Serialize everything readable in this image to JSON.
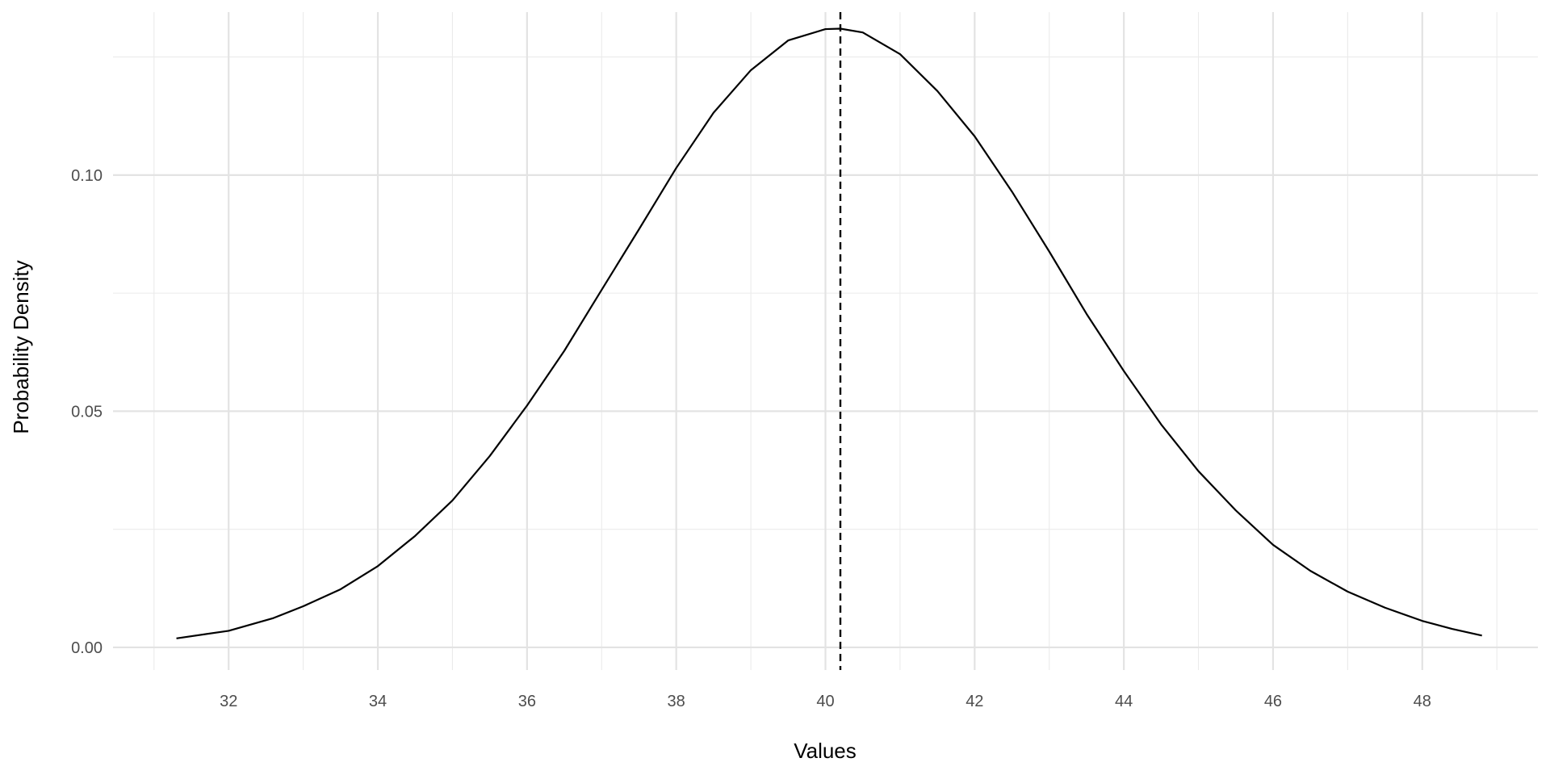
{
  "chart_data": {
    "type": "line",
    "title": "",
    "xlabel": "Values",
    "ylabel": "Probability Density",
    "xlim": [
      30.45,
      49.55
    ],
    "ylim": [
      -0.0048,
      0.1345
    ],
    "x_ticks": [
      32,
      34,
      36,
      38,
      40,
      42,
      44,
      46,
      48
    ],
    "x_tick_labels": [
      "32",
      "34",
      "36",
      "38",
      "40",
      "42",
      "44",
      "46",
      "48"
    ],
    "y_ticks": [
      0.0,
      0.05,
      0.1
    ],
    "y_tick_labels": [
      "0.00",
      "0.05",
      "0.10"
    ],
    "x_minor_ticks": [
      31,
      33,
      35,
      37,
      39,
      41,
      43,
      45,
      47,
      49
    ],
    "y_minor_ticks": [
      0.025,
      0.075,
      0.125
    ],
    "grid": true,
    "legend": "none",
    "series": [
      {
        "x": [
          31.3,
          32.0,
          32.6,
          33.0,
          33.5,
          34.0,
          34.5,
          35.0,
          35.5,
          36.0,
          36.5,
          37.0,
          37.5,
          38.0,
          38.5,
          39.0,
          39.5,
          40.0,
          40.2,
          40.5,
          41.0,
          41.5,
          42.0,
          42.5,
          43.0,
          43.5,
          44.0,
          44.5,
          45.0,
          45.5,
          46.0,
          46.5,
          47.0,
          47.5,
          48.0,
          48.4,
          48.8
        ],
        "y": [
          0.0019,
          0.0035,
          0.0062,
          0.0087,
          0.0123,
          0.0172,
          0.0236,
          0.0311,
          0.0405,
          0.0512,
          0.0628,
          0.0757,
          0.0885,
          0.1015,
          0.1132,
          0.1222,
          0.1285,
          0.1309,
          0.131,
          0.1302,
          0.1256,
          0.1178,
          0.1082,
          0.0965,
          0.0838,
          0.0706,
          0.0585,
          0.0472,
          0.0373,
          0.029,
          0.0217,
          0.0162,
          0.0118,
          0.0084,
          0.0056,
          0.0039,
          0.0025
        ],
        "color": "#000000"
      }
    ],
    "reference_lines": [
      {
        "axis": "x",
        "value": 40.2,
        "style": "dashed",
        "color": "#000000"
      }
    ]
  }
}
